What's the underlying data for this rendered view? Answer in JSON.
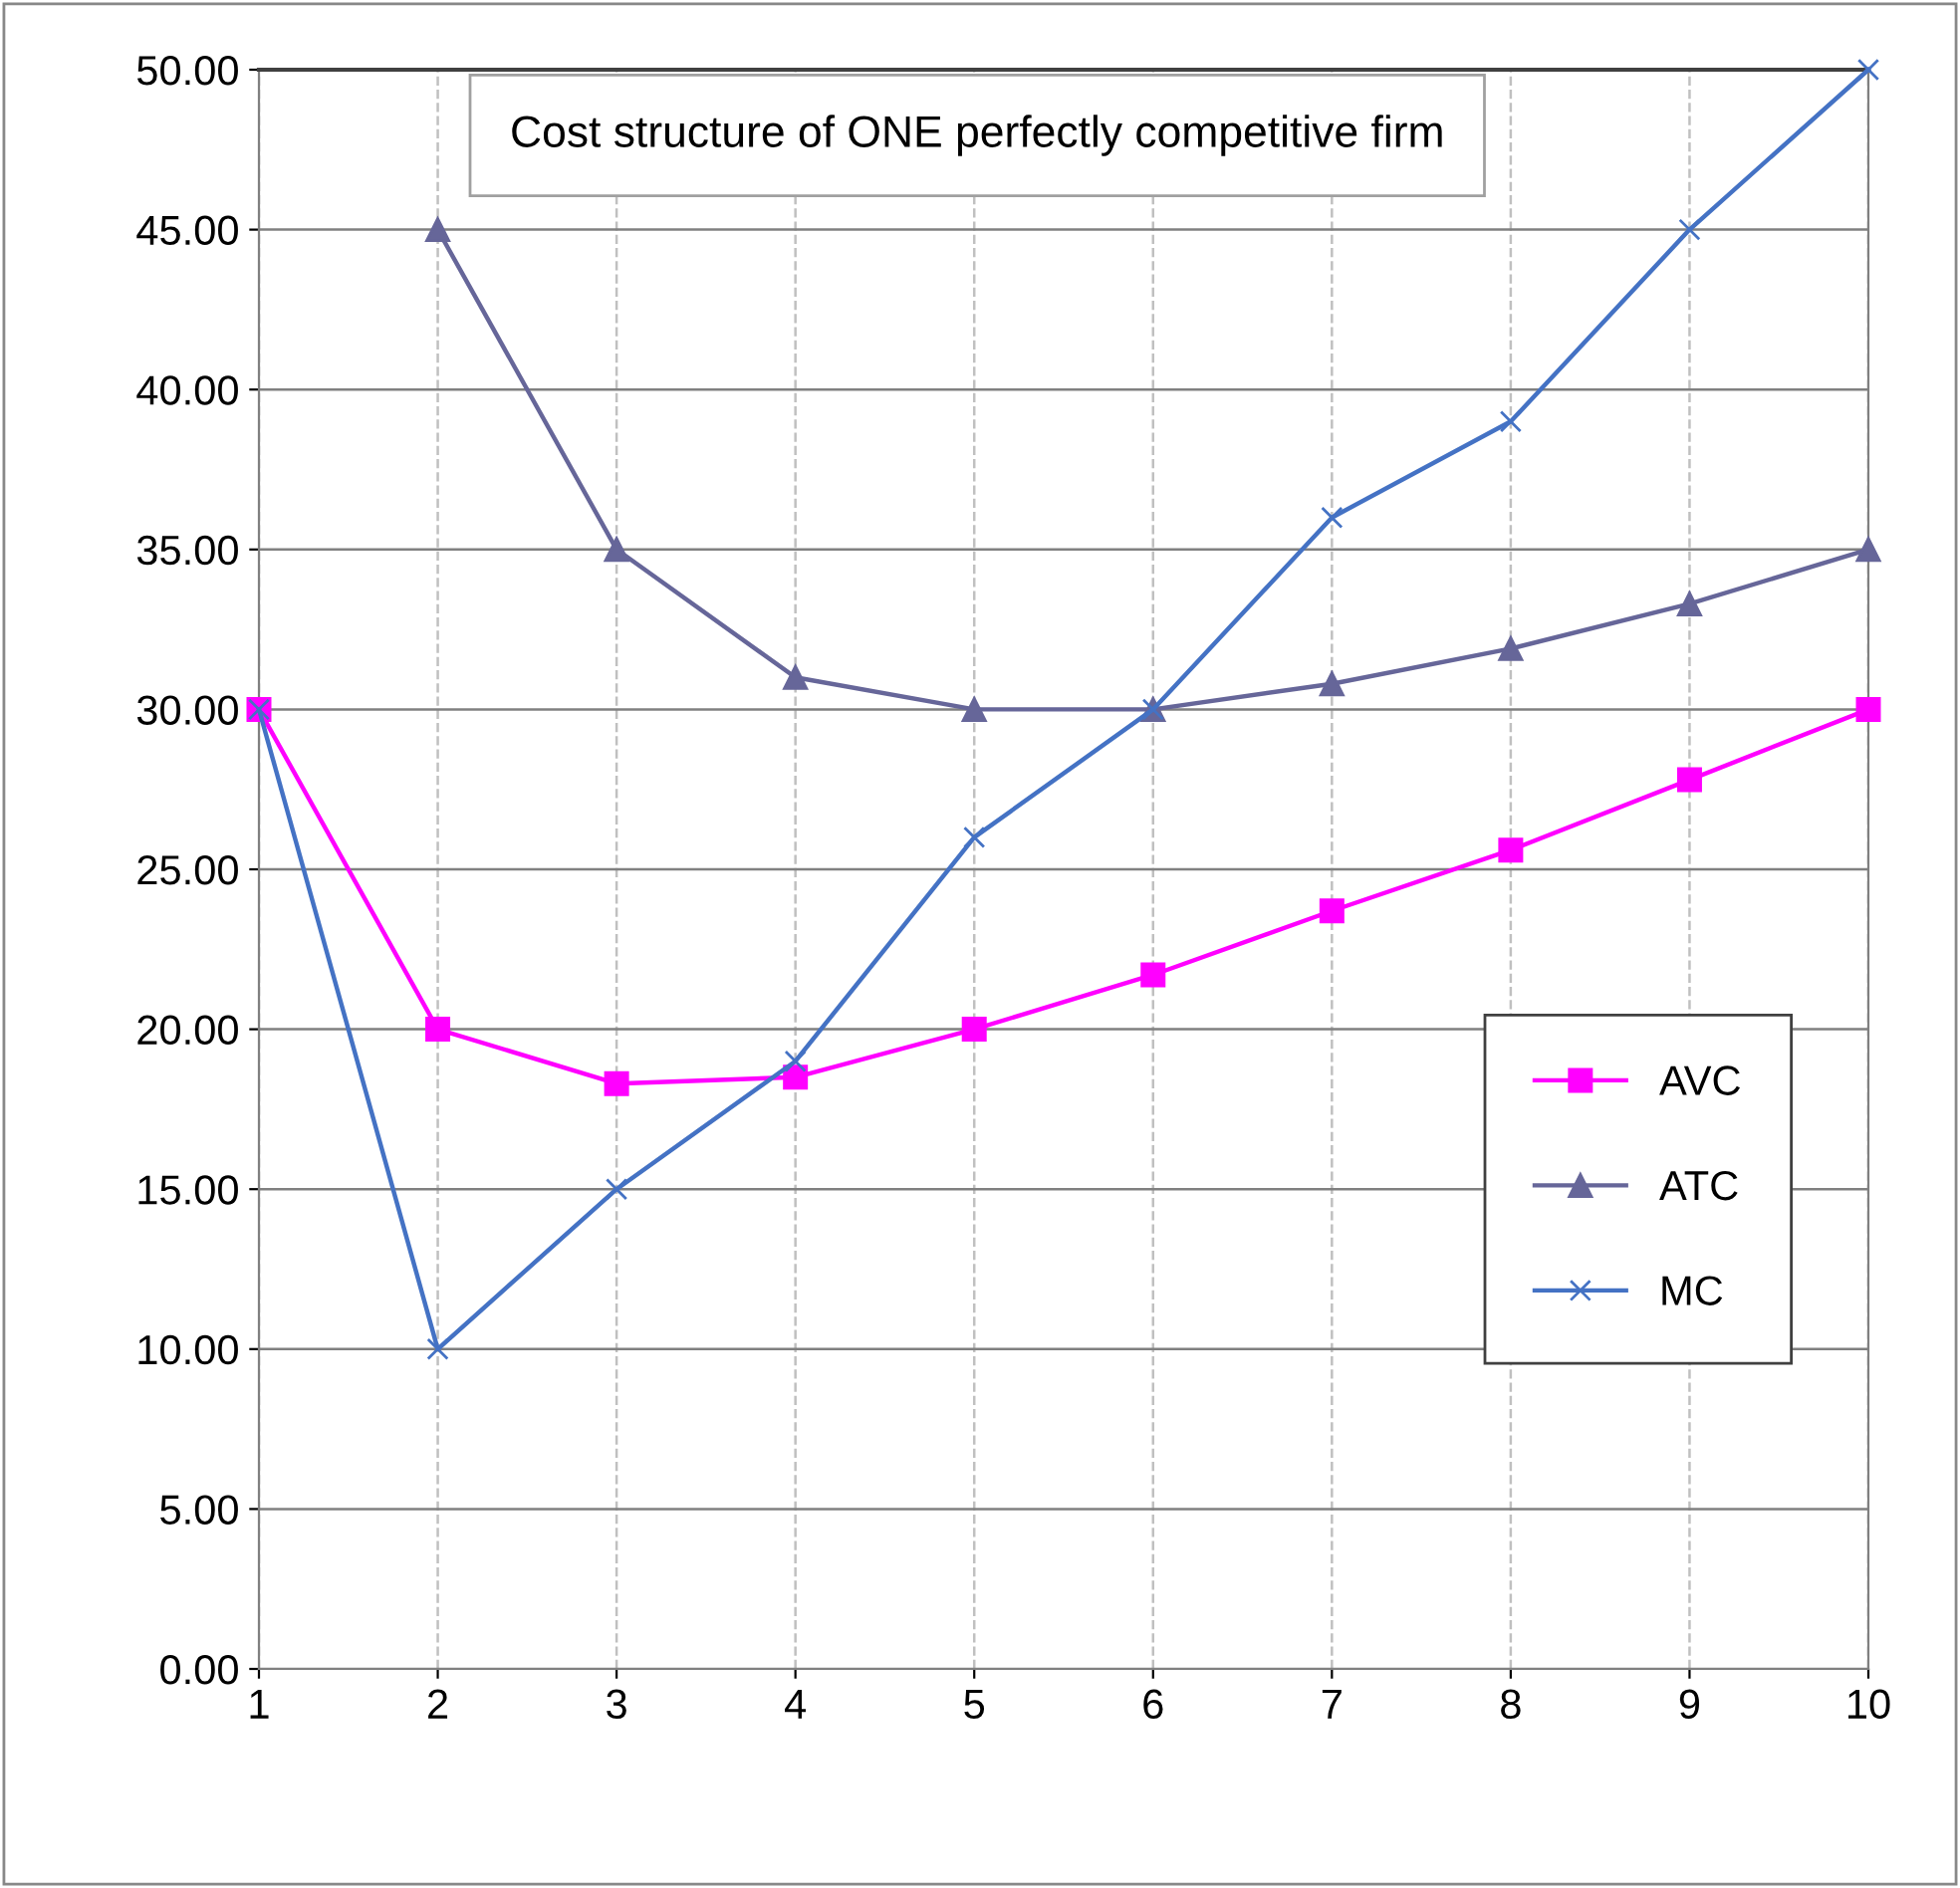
{
  "chart_data": {
    "type": "line",
    "title": "Cost structure of ONE perfectly competitive firm",
    "x": [
      1,
      2,
      3,
      4,
      5,
      6,
      7,
      8,
      9,
      10
    ],
    "series": [
      {
        "name": "AVC",
        "color": "#ff00ff",
        "marker": "square",
        "values": [
          30,
          20,
          18.3,
          18.5,
          20,
          21.7,
          23.7,
          25.6,
          27.8,
          30
        ]
      },
      {
        "name": "ATC",
        "color": "#666699",
        "marker": "triangle",
        "values": [
          null,
          45,
          35,
          31,
          30,
          30,
          30.8,
          31.9,
          33.3,
          35
        ]
      },
      {
        "name": "MC",
        "color": "#4472c4",
        "marker": "cross",
        "values": [
          30,
          10,
          15,
          19,
          26,
          30,
          36,
          39,
          45,
          50
        ]
      }
    ],
    "xlim": [
      1,
      10
    ],
    "xticks": [
      1,
      2,
      3,
      4,
      5,
      6,
      7,
      8,
      9,
      10
    ],
    "ylim": [
      0,
      50
    ],
    "yticks": [
      {
        "value": 0,
        "label": "0.00"
      },
      {
        "value": 5,
        "label": "5.00"
      },
      {
        "value": 10,
        "label": "10.00"
      },
      {
        "value": 15,
        "label": "15.00"
      },
      {
        "value": 20,
        "label": "20.00"
      },
      {
        "value": 25,
        "label": "25.00"
      },
      {
        "value": 30,
        "label": "30.00"
      },
      {
        "value": 35,
        "label": "35.00"
      },
      {
        "value": 40,
        "label": "40.00"
      },
      {
        "value": 45,
        "label": "45.00"
      },
      {
        "value": 50,
        "label": "50.00"
      }
    ],
    "grid": true,
    "legend": "right",
    "line_style": "solid"
  }
}
